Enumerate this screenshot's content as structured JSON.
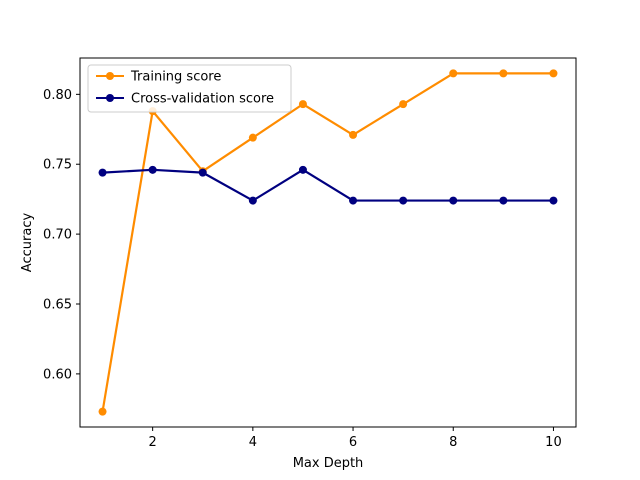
{
  "chart_data": {
    "type": "line",
    "title": "",
    "xlabel": "Max Depth",
    "ylabel": "Accuracy",
    "xlim": [
      0.55,
      10.45
    ],
    "ylim": [
      0.562,
      0.826
    ],
    "x_ticks": [
      2,
      4,
      6,
      8,
      10
    ],
    "x_tick_labels": [
      "2",
      "4",
      "6",
      "8",
      "10"
    ],
    "y_ticks": [
      0.6,
      0.65,
      0.7,
      0.75,
      0.8
    ],
    "y_tick_labels": [
      "0.60",
      "0.65",
      "0.70",
      "0.75",
      "0.80"
    ],
    "grid": false,
    "legend_position": "upper-left",
    "x": [
      1,
      2,
      3,
      4,
      5,
      6,
      7,
      8,
      9,
      10
    ],
    "series": [
      {
        "name": "Training score",
        "color": "#ff8c00",
        "values": [
          0.573,
          0.788,
          0.745,
          0.769,
          0.793,
          0.771,
          0.793,
          0.815,
          0.815,
          0.815
        ]
      },
      {
        "name": "Cross-validation score",
        "color": "#000080",
        "values": [
          0.744,
          0.746,
          0.744,
          0.724,
          0.746,
          0.724,
          0.724,
          0.724,
          0.724,
          0.724
        ]
      }
    ]
  }
}
